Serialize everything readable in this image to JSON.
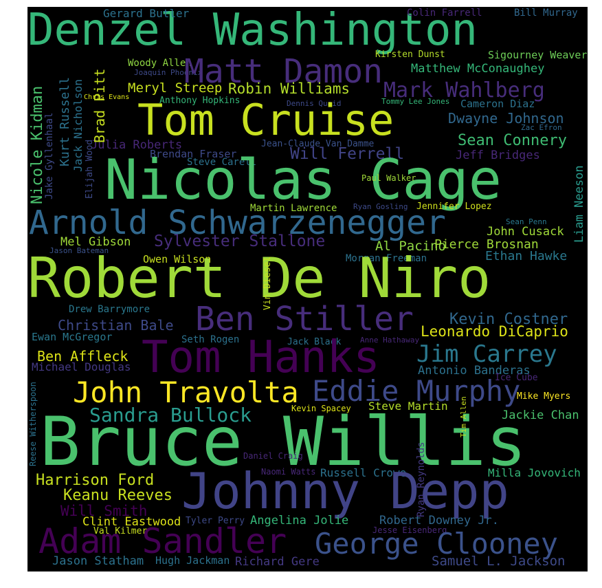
{
  "words": [
    {
      "text": "Denzel Washington",
      "color": "#35b779"
    },
    {
      "text": "Gerard Butler",
      "color": "#2c728e"
    },
    {
      "text": "Colin Farrell",
      "color": "#482878"
    },
    {
      "text": "Bill Murray",
      "color": "#31688e"
    },
    {
      "text": "Kirsten Dunst",
      "color": "#b5de2b"
    },
    {
      "text": "Sigourney Weaver",
      "color": "#6ece58"
    },
    {
      "text": "Woody Allen",
      "color": "#90d743"
    },
    {
      "text": "Joaquin Phoenix",
      "color": "#3e4a89"
    },
    {
      "text": "Matt Damon",
      "color": "#472d7b"
    },
    {
      "text": "Matthew McConaughey",
      "color": "#35b779"
    },
    {
      "text": "Meryl Streep",
      "color": "#c8e020"
    },
    {
      "text": "Robin Williams",
      "color": "#b5de2b"
    },
    {
      "text": "Mark Wahlberg",
      "color": "#472d7b"
    },
    {
      "text": "Chris Evans",
      "color": "#dde318"
    },
    {
      "text": "Anthony Hopkins",
      "color": "#35b779"
    },
    {
      "text": "Dennis Quaid",
      "color": "#3e4a89"
    },
    {
      "text": "Tommy Lee Jones",
      "color": "#35b779"
    },
    {
      "text": "Cameron Diaz",
      "color": "#2c728e"
    },
    {
      "text": "Tom Cruise",
      "color": "#c8e020"
    },
    {
      "text": "Dwayne Johnson",
      "color": "#31688e"
    },
    {
      "text": "Zac Efron",
      "color": "#31688e"
    },
    {
      "text": "Julia Roberts",
      "color": "#482878"
    },
    {
      "text": "Jean-Claude Van Damme",
      "color": "#3b528b"
    },
    {
      "text": "Sean Connery",
      "color": "#3fbc73"
    },
    {
      "text": "Brendan Fraser",
      "color": "#3e4a89"
    },
    {
      "text": "Will Ferrell",
      "color": "#414487"
    },
    {
      "text": "Jeff Bridges",
      "color": "#482878"
    },
    {
      "text": "Steve Carell",
      "color": "#2c728e"
    },
    {
      "text": "Nicolas Cage",
      "color": "#4ac16d"
    },
    {
      "text": "Paul Walker",
      "color": "#a0da39"
    },
    {
      "text": "Martin Lawrence",
      "color": "#a0da39"
    },
    {
      "text": "Ryan Gosling",
      "color": "#3e4a89"
    },
    {
      "text": "Jennifer Lopez",
      "color": "#d0e11c"
    },
    {
      "text": "Arnold Schwarzenegger",
      "color": "#31688e"
    },
    {
      "text": "Sean Penn",
      "color": "#2a788e"
    },
    {
      "text": "John Cusack",
      "color": "#a0da39"
    },
    {
      "text": "Mel Gibson",
      "color": "#a0da39"
    },
    {
      "text": "Sylvester Stallone",
      "color": "#472d7b"
    },
    {
      "text": "Al Pacino",
      "color": "#90d743"
    },
    {
      "text": "Pierce Brosnan",
      "color": "#a0da39"
    },
    {
      "text": "Jason Bateman",
      "color": "#3b528b"
    },
    {
      "text": "Owen Wilson",
      "color": "#c8e020"
    },
    {
      "text": "Morgan Freeman",
      "color": "#2c728e"
    },
    {
      "text": "Ethan Hawke",
      "color": "#2a788e"
    },
    {
      "text": "Robert De Niro",
      "color": "#a0da39"
    },
    {
      "text": "Drew Barrymore",
      "color": "#2a788e"
    },
    {
      "text": "Ben Stiller",
      "color": "#472d7b"
    },
    {
      "text": "Kevin Costner",
      "color": "#31688e"
    },
    {
      "text": "Christian Bale",
      "color": "#3e4a89"
    },
    {
      "text": "Leonardo DiCaprio",
      "color": "#dde318"
    },
    {
      "text": "Ewan McGregor",
      "color": "#2a788e"
    },
    {
      "text": "Seth Rogen",
      "color": "#2c728e"
    },
    {
      "text": "Jack Black",
      "color": "#2c728e"
    },
    {
      "text": "Anne Hathaway",
      "color": "#482878"
    },
    {
      "text": "Ben Affleck",
      "color": "#dde318"
    },
    {
      "text": "Tom Hanks",
      "color": "#440154"
    },
    {
      "text": "Jim Carrey",
      "color": "#2a788e"
    },
    {
      "text": "Michael Douglas",
      "color": "#443983"
    },
    {
      "text": "Antonio Banderas",
      "color": "#2c728e"
    },
    {
      "text": "John Travolta",
      "color": "#fde725"
    },
    {
      "text": "Eddie Murphy",
      "color": "#3e4a89"
    },
    {
      "text": "Ice Cube",
      "color": "#482878"
    },
    {
      "text": "Sandra Bullock",
      "color": "#2a9d8f"
    },
    {
      "text": "Mike Myers",
      "color": "#fde725"
    },
    {
      "text": "Kevin Spacey",
      "color": "#dde318"
    },
    {
      "text": "Steve Martin",
      "color": "#b5de2b"
    },
    {
      "text": "Jackie Chan",
      "color": "#4ac16d"
    },
    {
      "text": "Bruce Willis",
      "color": "#4ac16d"
    },
    {
      "text": "Daniel Craig",
      "color": "#482878"
    },
    {
      "text": "Naomi Watts",
      "color": "#482878"
    },
    {
      "text": "Russell Crowe",
      "color": "#2c728e"
    },
    {
      "text": "Milla Jovovich",
      "color": "#35b779"
    },
    {
      "text": "Harrison Ford",
      "color": "#c8e020"
    },
    {
      "text": "Johnny Depp",
      "color": "#414487"
    },
    {
      "text": "Keanu Reeves",
      "color": "#c8e020"
    },
    {
      "text": "Will Smith",
      "color": "#440154"
    },
    {
      "text": "Clint Eastwood",
      "color": "#dde318"
    },
    {
      "text": "Tyler Perry",
      "color": "#3e4a89"
    },
    {
      "text": "Angelina Jolie",
      "color": "#35b779"
    },
    {
      "text": "Robert Downey Jr.",
      "color": "#31688e"
    },
    {
      "text": "Jesse Eisenberg",
      "color": "#482878"
    },
    {
      "text": "Val Kilmer",
      "color": "#c8e020"
    },
    {
      "text": "Adam Sandler",
      "color": "#440154"
    },
    {
      "text": "George Clooney",
      "color": "#3b528b"
    },
    {
      "text": "Jason Statham",
      "color": "#2c728e"
    },
    {
      "text": "Hugh Jackman",
      "color": "#2c728e"
    },
    {
      "text": "Richard Gere",
      "color": "#443983"
    },
    {
      "text": "Samuel L. Jackson",
      "color": "#3e4a89"
    },
    {
      "text": "Nicole Kidman",
      "color": "#4ac16d"
    },
    {
      "text": "Jake Gyllenhaal",
      "color": "#3e4a89"
    },
    {
      "text": "Kurt Russell",
      "color": "#2c728e"
    },
    {
      "text": "Jack Nicholson",
      "color": "#2c728e"
    },
    {
      "text": "Brad Pitt",
      "color": "#c8e020"
    },
    {
      "text": "Elijah Wood",
      "color": "#3e4a89"
    },
    {
      "text": "Liam Neeson",
      "color": "#2a9d8f"
    },
    {
      "text": "Vin Diesel",
      "color": "#c8e020"
    },
    {
      "text": "Tim Allen",
      "color": "#c8e020"
    },
    {
      "text": "Reese Witherspoon",
      "color": "#2c728e"
    },
    {
      "text": "Ryan Reynolds",
      "color": "#443983"
    }
  ]
}
